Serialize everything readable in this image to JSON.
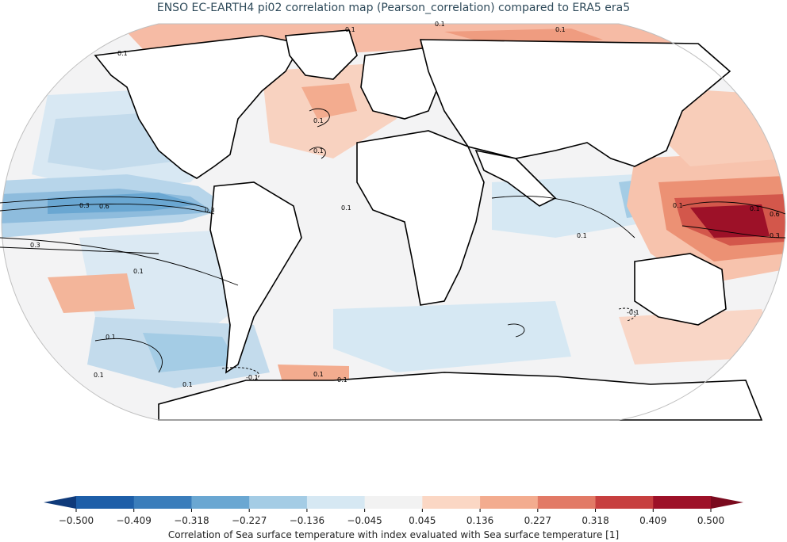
{
  "title": "ENSO EC-EARTH4 pi02 correlation map (Pearson_correlation) compared to ERA5 era5",
  "colorbar": {
    "caption": "Correlation of Sea surface temperature with index evaluated with Sea surface temperature [1]",
    "tick_labels": [
      "−0.500",
      "−0.409",
      "−0.318",
      "−0.227",
      "−0.136",
      "−0.045",
      "0.045",
      "0.136",
      "0.227",
      "0.318",
      "0.409",
      "0.500"
    ],
    "colors": [
      "#1d5ea8",
      "#3a7dbb",
      "#6aa7d2",
      "#a4cce5",
      "#d6e8f3",
      "#f2f2f2",
      "#fbd7c4",
      "#f3ac8f",
      "#e27a66",
      "#c73f3f",
      "#9d1128"
    ],
    "extend_low_color": "#0f3a7a",
    "extend_high_color": "#7a0a1e"
  },
  "contour_labels": [
    "0.1",
    "0.1",
    "0.1",
    "0.1",
    "0.1",
    "0.1",
    "0.3",
    "0.6",
    "0.3",
    "0.3",
    "0.1",
    "0.1",
    "0.1",
    "-0.1",
    "0.1",
    "0.1",
    "0.1",
    "0.6",
    "0.3",
    "0.1",
    "0.1",
    "0.1",
    "-0.1",
    "0.1"
  ]
}
